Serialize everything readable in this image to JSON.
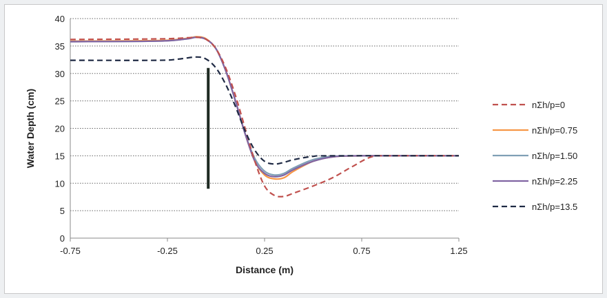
{
  "chart_data": {
    "type": "line",
    "title": "",
    "xlabel": "Distance (m)",
    "ylabel": "Water Depth (cm)",
    "xlim": [
      -0.75,
      1.25
    ],
    "ylim": [
      0,
      40
    ],
    "xticks": [
      "-0.75",
      "-0.25",
      "0.25",
      "0.75",
      "1.25"
    ],
    "yticks": [
      "0",
      "5",
      "10",
      "15",
      "20",
      "25",
      "30",
      "35",
      "40"
    ],
    "grid": "horizontal dotted",
    "legend_position": "right",
    "gate": {
      "x": -0.04,
      "y_bottom": 9,
      "y_top": 31,
      "color": "#1e2a22"
    },
    "series": [
      {
        "name": "nΣh/p=0",
        "color": "#c0504d",
        "dash": "dashed",
        "points": [
          [
            -0.75,
            36.2
          ],
          [
            -0.3,
            36.3
          ],
          [
            -0.15,
            36.5
          ],
          [
            -0.1,
            36.6
          ],
          [
            -0.05,
            36.2
          ],
          [
            0.0,
            34.5
          ],
          [
            0.05,
            31
          ],
          [
            0.1,
            26
          ],
          [
            0.15,
            20
          ],
          [
            0.2,
            14
          ],
          [
            0.25,
            9.5
          ],
          [
            0.3,
            7.8
          ],
          [
            0.35,
            7.6
          ],
          [
            0.4,
            8.2
          ],
          [
            0.5,
            9.5
          ],
          [
            0.6,
            11
          ],
          [
            0.7,
            13
          ],
          [
            0.8,
            14.8
          ],
          [
            0.9,
            15
          ],
          [
            1.25,
            15
          ]
        ]
      },
      {
        "name": "nΣh/p=0.75",
        "color": "#f79646",
        "dash": "solid",
        "points": [
          [
            -0.75,
            35.9
          ],
          [
            -0.3,
            36.0
          ],
          [
            -0.15,
            36.4
          ],
          [
            -0.1,
            36.7
          ],
          [
            -0.05,
            36.3
          ],
          [
            0.0,
            34.5
          ],
          [
            0.05,
            30.5
          ],
          [
            0.1,
            25
          ],
          [
            0.15,
            19
          ],
          [
            0.2,
            14
          ],
          [
            0.25,
            11.5
          ],
          [
            0.3,
            10.8
          ],
          [
            0.35,
            11
          ],
          [
            0.4,
            12.2
          ],
          [
            0.5,
            14
          ],
          [
            0.6,
            14.8
          ],
          [
            0.75,
            15
          ],
          [
            1.25,
            15
          ]
        ]
      },
      {
        "name": "nΣh/p=1.50",
        "color": "#7f9fb5",
        "dash": "solid",
        "points": [
          [
            -0.75,
            35.8
          ],
          [
            -0.3,
            35.9
          ],
          [
            -0.15,
            36.3
          ],
          [
            -0.1,
            36.6
          ],
          [
            -0.05,
            36.2
          ],
          [
            0.0,
            34.5
          ],
          [
            0.05,
            30.5
          ],
          [
            0.1,
            25
          ],
          [
            0.15,
            19
          ],
          [
            0.2,
            14.5
          ],
          [
            0.25,
            12.2
          ],
          [
            0.3,
            11.5
          ],
          [
            0.35,
            11.8
          ],
          [
            0.4,
            12.8
          ],
          [
            0.5,
            14.3
          ],
          [
            0.6,
            14.9
          ],
          [
            0.75,
            15
          ],
          [
            1.25,
            15
          ]
        ]
      },
      {
        "name": "nΣh/p=2.25",
        "color": "#8064a2",
        "dash": "solid",
        "points": [
          [
            -0.75,
            35.8
          ],
          [
            -0.3,
            35.9
          ],
          [
            -0.15,
            36.3
          ],
          [
            -0.1,
            36.6
          ],
          [
            -0.05,
            36.2
          ],
          [
            0.0,
            34.5
          ],
          [
            0.05,
            30.5
          ],
          [
            0.1,
            25
          ],
          [
            0.15,
            19
          ],
          [
            0.2,
            14
          ],
          [
            0.25,
            11.8
          ],
          [
            0.3,
            11.2
          ],
          [
            0.35,
            11.5
          ],
          [
            0.4,
            12.5
          ],
          [
            0.5,
            14
          ],
          [
            0.6,
            14.8
          ],
          [
            0.75,
            15
          ],
          [
            1.25,
            15
          ]
        ]
      },
      {
        "name": "nΣh/p=13.5",
        "color": "#1f2a44",
        "dash": "dashed",
        "points": [
          [
            -0.75,
            32.4
          ],
          [
            -0.3,
            32.4
          ],
          [
            -0.2,
            32.6
          ],
          [
            -0.1,
            33.0
          ],
          [
            -0.05,
            32.6
          ],
          [
            0.0,
            31
          ],
          [
            0.05,
            28
          ],
          [
            0.1,
            24
          ],
          [
            0.15,
            19.5
          ],
          [
            0.2,
            16
          ],
          [
            0.25,
            14
          ],
          [
            0.3,
            13.5
          ],
          [
            0.35,
            13.8
          ],
          [
            0.4,
            14.3
          ],
          [
            0.5,
            14.9
          ],
          [
            0.6,
            15
          ],
          [
            1.25,
            15
          ]
        ]
      }
    ]
  }
}
